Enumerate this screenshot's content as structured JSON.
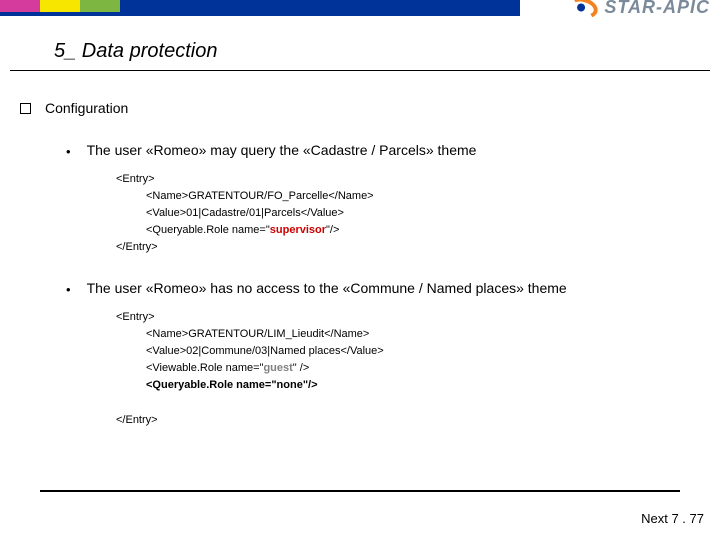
{
  "brand": {
    "name": "STAR-APIC"
  },
  "title": "5_ Data protection",
  "config_label": "Configuration",
  "item1": {
    "text": "The user «Romeo» may query the «Cadastre / Parcels» theme",
    "code": {
      "open": "<Entry>",
      "l1": "<Name>GRATENTOUR/FO_Parcelle</Name>",
      "l2": "<Value>01|Cadastre/01|Parcels</Value>",
      "l3a": "<Queryable.Role name=\"",
      "l3b": "supervisor",
      "l3c": "\"/>",
      "close": "</Entry>"
    }
  },
  "item2": {
    "text": "The user «Romeo» has no access to the  «Commune / Named places» theme",
    "code": {
      "open": "<Entry>",
      "l1": "<Name>GRATENTOUR/LIM_Lieudit</Name>",
      "l2": "<Value>02|Commune/03|Named places</Value>",
      "l3a": "<Viewable.Role name=\"",
      "l3b": "guest",
      "l3c": "\" />",
      "l4": "<Queryable.Role name=\"none\"/>",
      "close": "</Entry>"
    }
  },
  "footer": "Next 7 . 77"
}
